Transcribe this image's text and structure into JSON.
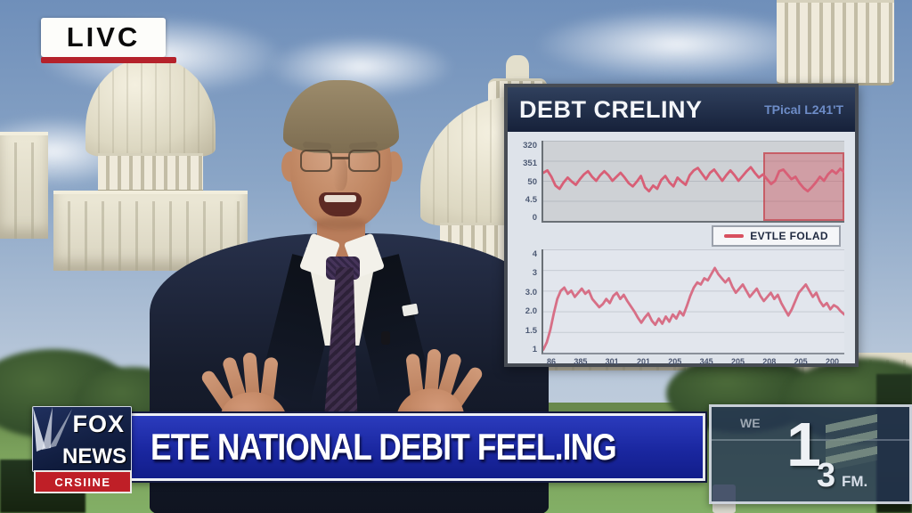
{
  "live_badge": {
    "label": "LIVC",
    "underline_color": "#b5222b"
  },
  "chart_panel": {
    "title": "DEBT CRELINY",
    "subtitle": "TPical L241'T",
    "legend_label": "EVTLE FOLAD",
    "legend_swatch_color": "#d8505f"
  },
  "chart_data": [
    {
      "type": "line",
      "title": "DEBT CRELINY",
      "line_color": "#d85f76",
      "ylim": [
        0,
        100
      ],
      "grid": true,
      "yticks": [
        "320",
        "351",
        "50",
        "4.5",
        "0"
      ],
      "values": [
        60,
        63,
        55,
        44,
        40,
        48,
        54,
        49,
        45,
        52,
        58,
        62,
        55,
        50,
        57,
        62,
        57,
        50,
        55,
        60,
        54,
        47,
        43,
        49,
        56,
        42,
        37,
        44,
        40,
        51,
        56,
        48,
        43,
        54,
        49,
        45,
        57,
        63,
        66,
        59,
        52,
        60,
        64,
        57,
        50,
        57,
        63,
        57,
        50,
        56,
        62,
        67,
        60,
        54,
        58,
        52,
        46,
        50,
        62,
        64,
        58,
        52,
        55,
        47,
        41,
        37,
        42,
        48,
        55,
        50,
        58,
        63,
        59,
        65,
        61
      ],
      "highlight_region": {
        "start_frac": 0.73,
        "end_frac": 1.0,
        "color": "rgba(214,62,72,0.34)"
      }
    },
    {
      "type": "line",
      "legend": "EVTLE FOLAD",
      "line_color": "#d76f86",
      "ylim": [
        0,
        100
      ],
      "grid": true,
      "yticks": [
        "4",
        "3",
        "3.0",
        "2.0",
        "1.5",
        "1"
      ],
      "xticks": [
        "86",
        "385",
        "301",
        "201",
        "205",
        "345",
        "205",
        "208",
        "205",
        "200"
      ],
      "values": [
        3,
        10,
        22,
        38,
        52,
        60,
        63,
        57,
        60,
        54,
        58,
        62,
        57,
        60,
        52,
        48,
        44,
        47,
        52,
        48,
        55,
        58,
        52,
        56,
        50,
        45,
        40,
        34,
        29,
        34,
        38,
        31,
        27,
        33,
        28,
        35,
        30,
        37,
        33,
        40,
        36,
        45,
        55,
        63,
        68,
        66,
        72,
        70,
        76,
        82,
        76,
        72,
        68,
        72,
        64,
        58,
        62,
        66,
        60,
        54,
        58,
        62,
        55,
        50,
        54,
        58,
        52,
        56,
        48,
        42,
        36,
        42,
        50,
        58,
        62,
        66,
        60,
        54,
        58,
        50,
        45,
        48,
        42,
        46,
        44,
        40,
        37
      ]
    }
  ],
  "lower_third": {
    "headline": "ETE NATIONAL DEBIT FEEL.ING",
    "bg_color": "#1c2ba4"
  },
  "network_logo": {
    "name_line1": "FOX",
    "name_line2": "NEWS",
    "tagline": "CRSIINE",
    "box_color": "#15234d",
    "tagline_bg": "#bf1f27"
  },
  "station_watermark": {
    "small_text": "WE",
    "digit_big": "1",
    "digit_small": "3",
    "suffix": "FM."
  }
}
